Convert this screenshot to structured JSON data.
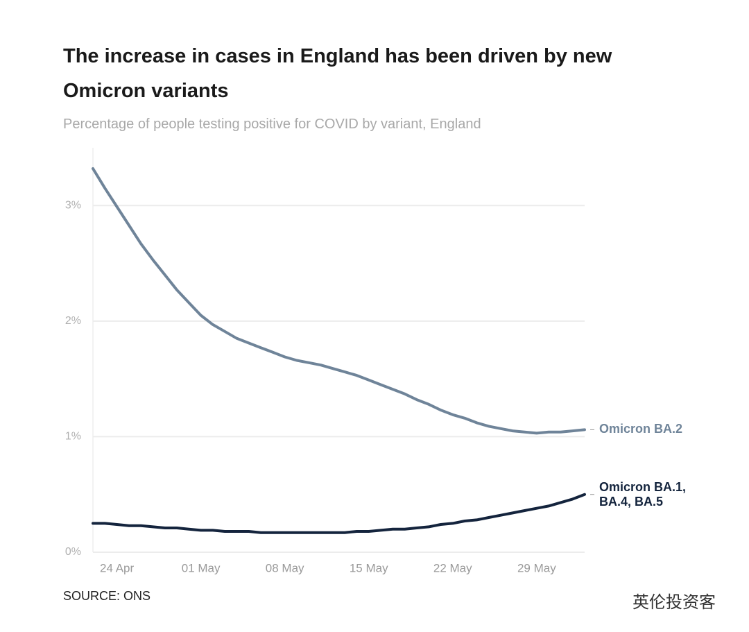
{
  "chart_data": {
    "type": "line",
    "title": "The increase in cases in England has been driven by new Omicron variants",
    "subtitle": "Percentage of people testing positive for COVID by variant, England",
    "categories": [
      null,
      null,
      "24 Apr",
      null,
      null,
      null,
      null,
      null,
      null,
      "01 May",
      null,
      null,
      null,
      null,
      null,
      null,
      "08 May",
      null,
      null,
      null,
      null,
      null,
      null,
      "15 May",
      null,
      null,
      null,
      null,
      null,
      null,
      "22 May",
      null,
      null,
      null,
      null,
      null,
      null,
      "29 May",
      null,
      null,
      null,
      null
    ],
    "series": [
      {
        "name": "Omicron BA.2",
        "color": "#6f8499",
        "values": [
          3.32,
          3.15,
          2.99,
          2.83,
          2.67,
          2.53,
          2.4,
          2.27,
          2.16,
          2.05,
          1.97,
          1.91,
          1.85,
          1.81,
          1.77,
          1.73,
          1.69,
          1.66,
          1.64,
          1.62,
          1.59,
          1.56,
          1.53,
          1.49,
          1.45,
          1.41,
          1.37,
          1.32,
          1.28,
          1.23,
          1.19,
          1.16,
          1.12,
          1.09,
          1.07,
          1.05,
          1.04,
          1.03,
          1.04,
          1.04,
          1.05,
          1.06
        ]
      },
      {
        "name": "Omicron BA.1, BA.4, BA.5",
        "color": "#14243d",
        "values": [
          0.25,
          0.25,
          0.24,
          0.23,
          0.23,
          0.22,
          0.21,
          0.21,
          0.2,
          0.19,
          0.19,
          0.18,
          0.18,
          0.18,
          0.17,
          0.17,
          0.17,
          0.17,
          0.17,
          0.17,
          0.17,
          0.17,
          0.18,
          0.18,
          0.19,
          0.2,
          0.2,
          0.21,
          0.22,
          0.24,
          0.25,
          0.27,
          0.28,
          0.3,
          0.32,
          0.34,
          0.36,
          0.38,
          0.4,
          0.43,
          0.46,
          0.5
        ]
      }
    ],
    "ylim": [
      0,
      3.5
    ],
    "yticks": [
      {
        "value": 0,
        "label": "0%"
      },
      {
        "value": 1,
        "label": "1%"
      },
      {
        "value": 2,
        "label": "2%"
      },
      {
        "value": 3,
        "label": "3%"
      }
    ],
    "grid": true,
    "source": "SOURCE: ONS",
    "watermark": "英伦投资客"
  }
}
